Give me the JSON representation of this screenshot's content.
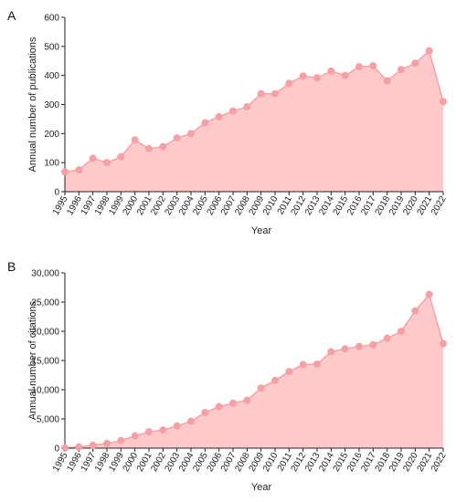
{
  "chart_data": [
    {
      "panel": "A",
      "type": "area",
      "xlabel": "Year",
      "ylabel": "Annual number of publications",
      "ylim": [
        0,
        600
      ],
      "yticks": [
        0,
        100,
        200,
        300,
        400,
        500,
        600
      ],
      "ytick_labels": [
        "0",
        "100",
        "200",
        "300",
        "400",
        "500",
        "600"
      ],
      "x": [
        "1995",
        "1996",
        "1997",
        "1998",
        "1999",
        "2000",
        "2001",
        "2002",
        "2003",
        "2004",
        "2005",
        "2006",
        "2007",
        "2008",
        "2009",
        "2010",
        "2011",
        "2012",
        "2013",
        "2014",
        "2015",
        "2016",
        "2017",
        "2018",
        "2019",
        "2020",
        "2021",
        "2022"
      ],
      "values": [
        68,
        75,
        115,
        100,
        120,
        178,
        148,
        155,
        185,
        200,
        237,
        258,
        278,
        292,
        337,
        337,
        373,
        398,
        392,
        415,
        400,
        430,
        433,
        382,
        420,
        442,
        485,
        310
      ],
      "grid": false,
      "color": "#f4a0a4",
      "fill": "#fdc9ca"
    },
    {
      "panel": "B",
      "type": "area",
      "xlabel": "Year",
      "ylabel": "Annual number of citations",
      "ylim": [
        0,
        30000
      ],
      "yticks": [
        0,
        5000,
        10000,
        15000,
        20000,
        25000,
        30000
      ],
      "ytick_labels": [
        "0",
        "5,000",
        "10,000",
        "15,000",
        "20,000",
        "25,000",
        "30,000"
      ],
      "x": [
        "1995",
        "1996",
        "1997",
        "1998",
        "1999",
        "2000",
        "2001",
        "2002",
        "2003",
        "2004",
        "2005",
        "2006",
        "2007",
        "2008",
        "2009",
        "2010",
        "2011",
        "2012",
        "2013",
        "2014",
        "2015",
        "2016",
        "2017",
        "2018",
        "2019",
        "2020",
        "2021",
        "2022"
      ],
      "values": [
        50,
        200,
        500,
        800,
        1300,
        2100,
        2800,
        3100,
        3800,
        4600,
        6100,
        7100,
        7700,
        8200,
        10300,
        11600,
        13100,
        14300,
        14400,
        16500,
        17000,
        17400,
        17700,
        18800,
        20000,
        23500,
        26300,
        17900
      ],
      "grid": false,
      "color": "#f4a0a4",
      "fill": "#fdc9ca"
    }
  ]
}
